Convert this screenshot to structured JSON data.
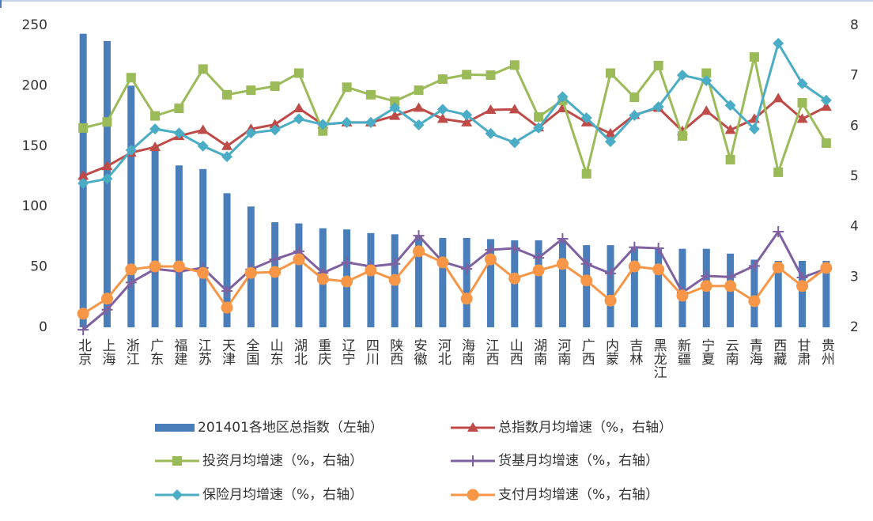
{
  "chart_data": {
    "type": "combo",
    "categories": [
      "北京",
      "上海",
      "浙江",
      "广东",
      "福建",
      "江苏",
      "天津",
      "全国",
      "山东",
      "湖北",
      "重庆",
      "辽宁",
      "四川",
      "陕西",
      "安徽",
      "河北",
      "海南",
      "江西",
      "山西",
      "湖南",
      "河南",
      "广西",
      "内蒙",
      "吉林",
      "黑龙江",
      "新疆",
      "宁夏",
      "云南",
      "青海",
      "西藏",
      "甘肃",
      "贵州"
    ],
    "ylim": [
      0,
      250
    ],
    "yticks": [
      0,
      50,
      100,
      150,
      200,
      250
    ],
    "y2lim": [
      2,
      8
    ],
    "y2ticks": [
      2,
      3,
      4,
      5,
      6,
      7,
      8
    ],
    "grid": false,
    "legend": "bottom",
    "series": [
      {
        "name": "201401各地区总指数（左轴）",
        "type": "bar",
        "axis": "y",
        "color": "#4a7ebb",
        "values": [
          243,
          237,
          200,
          150,
          134,
          131,
          111,
          100,
          87,
          86,
          82,
          81,
          78,
          77,
          76,
          74,
          74,
          73,
          72,
          72,
          72,
          68,
          68,
          66,
          66,
          65,
          65,
          61,
          56,
          55,
          55,
          55
        ]
      },
      {
        "name": "总指数月均增速（%，右轴）",
        "type": "line",
        "axis": "y2",
        "color": "#be4b48",
        "marker": "triangle",
        "values": [
          5.01,
          5.2,
          5.47,
          5.58,
          5.8,
          5.92,
          5.6,
          5.94,
          6.03,
          6.35,
          6.03,
          6.07,
          6.07,
          6.2,
          6.36,
          6.14,
          6.07,
          6.32,
          6.33,
          5.97,
          6.35,
          6.07,
          5.85,
          6.22,
          6.36,
          5.9,
          6.3,
          5.92,
          6.14,
          6.55,
          6.14,
          6.38
        ]
      },
      {
        "name": "投资月均增速（%，右轴）",
        "type": "line",
        "axis": "y2",
        "color": "#9bbb59",
        "marker": "square",
        "values": [
          5.96,
          6.08,
          6.96,
          6.2,
          6.35,
          7.13,
          6.62,
          6.71,
          6.79,
          7.05,
          5.9,
          6.77,
          6.62,
          6.49,
          6.71,
          6.93,
          7.02,
          7.01,
          7.21,
          6.18,
          6.51,
          5.05,
          7.05,
          6.57,
          7.2,
          5.8,
          7.05,
          5.33,
          7.37,
          5.08,
          6.46,
          5.66
        ]
      },
      {
        "name": "货基月均增速（%，右轴）",
        "type": "line",
        "axis": "y2",
        "color": "#7f60a0",
        "marker": "plus",
        "values": [
          1.95,
          2.35,
          2.89,
          3.16,
          3.11,
          3.18,
          2.72,
          3.15,
          3.35,
          3.51,
          3.08,
          3.29,
          3.21,
          3.26,
          3.82,
          3.3,
          3.16,
          3.54,
          3.57,
          3.38,
          3.76,
          3.26,
          3.07,
          3.59,
          3.57,
          2.69,
          3.02,
          3.0,
          3.22,
          3.9,
          2.99,
          3.16
        ]
      },
      {
        "name": "保险月均增速（%，右轴）",
        "type": "line",
        "axis": "y2",
        "color": "#4bacc6",
        "marker": "diamond",
        "values": [
          4.86,
          4.95,
          5.52,
          5.94,
          5.86,
          5.6,
          5.39,
          5.86,
          5.92,
          6.14,
          6.03,
          6.07,
          6.07,
          6.36,
          6.02,
          6.33,
          6.22,
          5.85,
          5.67,
          5.96,
          6.58,
          6.16,
          5.69,
          6.21,
          6.38,
          7.01,
          6.9,
          6.41,
          5.94,
          7.64,
          6.84,
          6.51
        ]
      },
      {
        "name": "支付月均增速（%，右轴）",
        "type": "line",
        "axis": "y2",
        "color": "#f79646",
        "marker": "circle",
        "values": [
          2.27,
          2.57,
          3.15,
          3.21,
          3.21,
          3.08,
          2.39,
          3.08,
          3.1,
          3.35,
          2.96,
          2.91,
          3.13,
          2.94,
          3.51,
          3.29,
          2.57,
          3.35,
          2.97,
          3.13,
          3.26,
          2.93,
          2.53,
          3.21,
          3.15,
          2.63,
          2.82,
          2.82,
          2.52,
          3.19,
          2.82,
          3.18
        ]
      }
    ]
  }
}
